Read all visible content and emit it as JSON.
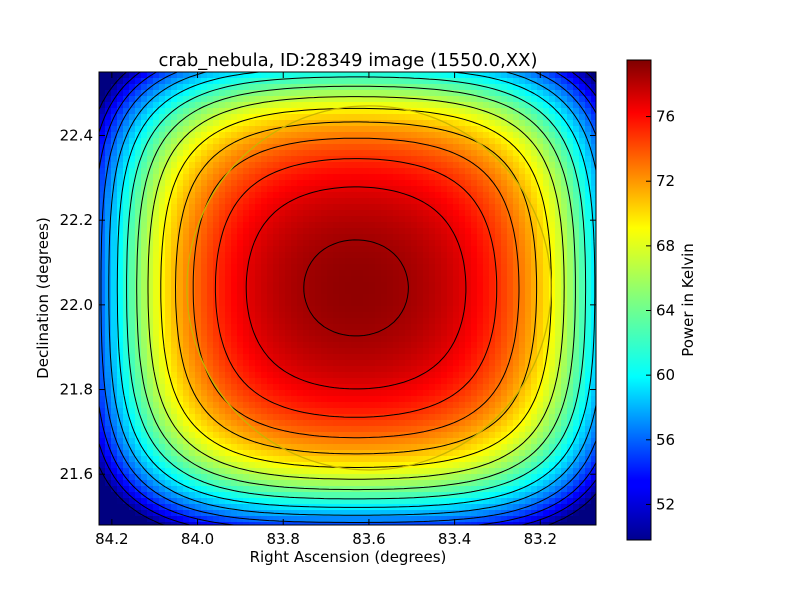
{
  "chart_data": {
    "type": "heatmap",
    "title": "crab_nebula, ID:28349 image (1550.0,XX)",
    "xlabel": "Right Ascension (degrees)",
    "ylabel": "Declination (degrees)",
    "colorbar_label": "Power in Kelvin",
    "colormap": "jet",
    "xlim": [
      84.23,
      83.07
    ],
    "ylim": [
      21.48,
      22.55
    ],
    "x_ticks": [
      84.2,
      84.0,
      83.8,
      83.6,
      83.4,
      83.2
    ],
    "x_tick_labels": [
      "84.2",
      "84.0",
      "83.8",
      "83.6",
      "83.4",
      "83.2"
    ],
    "y_ticks": [
      21.6,
      21.8,
      22.0,
      22.2,
      22.4
    ],
    "y_tick_labels": [
      "21.6",
      "21.8",
      "22.0",
      "22.2",
      "22.4"
    ],
    "colorbar_range": [
      49.8,
      79.5
    ],
    "colorbar_ticks": [
      52,
      56,
      60,
      64,
      68,
      72,
      76
    ],
    "colorbar_tick_labels": [
      "52",
      "56",
      "60",
      "64",
      "68",
      "72",
      "76"
    ],
    "peak": {
      "ra": 83.63,
      "dec": 22.04,
      "value": 79.0
    },
    "min_corner_value": 49.8,
    "contour_color": "#000000",
    "circle": {
      "center_ra": 83.6,
      "center_dec": 22.04,
      "radius_deg": 0.43,
      "color": "#c8b400"
    }
  }
}
